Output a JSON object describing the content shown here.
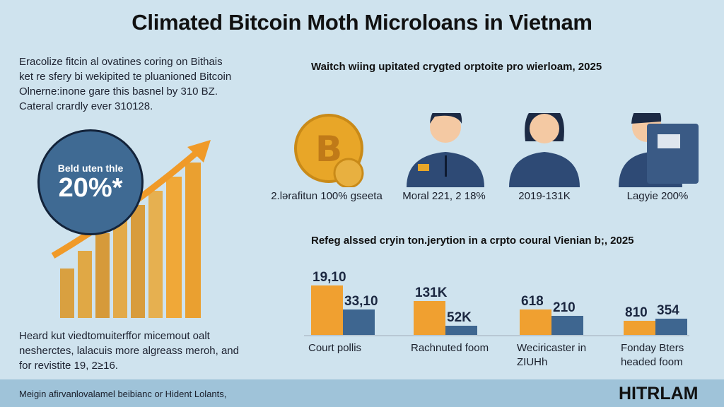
{
  "title": "Climated Bitcoin Moth Microloans in Vietnam",
  "intro": [
    "Eracolize fitcin al ovatines coring on Bithais",
    "ket re sfery bi wekipited te pluanioned Bitcoin",
    "Olnerne:inone gare this basnel by 310 BZ.",
    "Cateral crardly ever 310128."
  ],
  "circle": {
    "small": "Beld uten thle",
    "big": "20%*"
  },
  "people_section": {
    "subtitle": "Waitch wiing upitated crygted orptoite pro wierloam, 2025",
    "labels": [
      "2.lərafitun 100% gseeta",
      "Moral 221, 2 18%",
      "2019-131K",
      "Lagyie 200%"
    ]
  },
  "chart_data": {
    "type": "bar",
    "title": "Refeg alssed cryin ton.jerytion in a crpto coural Vienian b;, 2025",
    "categories": [
      "Court pollis",
      "Rachnuted foom",
      "Weciricaster in ZIUHh",
      "Fonday Bters headed foom"
    ],
    "series": [
      {
        "color": "#f0a030",
        "labels": [
          "19,10",
          "131K",
          "618",
          "810"
        ],
        "relative_height": [
          100,
          68,
          51,
          29
        ]
      },
      {
        "color": "#3e6690",
        "labels": [
          "33,10",
          "52K",
          "210",
          "354"
        ],
        "relative_height": [
          51,
          19,
          38,
          33
        ]
      }
    ]
  },
  "outro": [
    "Heard kut viedtomuiterffor micemout oalt",
    "nesherctes, lalacuis more algreass meroh, and",
    "for revistite 19, 2≥16."
  ],
  "footer": {
    "text": "Meigin afirvanlovalamel beibianc or Hident Lolants,",
    "logo": "HITRLAM"
  },
  "colors": {
    "background": "#cfe3ee",
    "orange": "#f0a030",
    "navy": "#3e6690",
    "footer": "#9fc3d9"
  }
}
